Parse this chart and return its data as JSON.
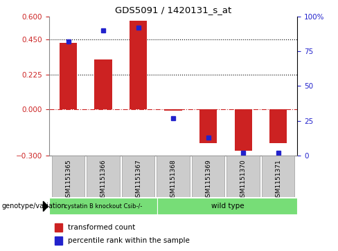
{
  "title": "GDS5091 / 1420131_s_at",
  "samples": [
    "GSM1151365",
    "GSM1151366",
    "GSM1151367",
    "GSM1151368",
    "GSM1151369",
    "GSM1151370",
    "GSM1151371"
  ],
  "red_values": [
    0.43,
    0.32,
    0.57,
    -0.01,
    -0.22,
    -0.27,
    -0.22
  ],
  "blue_values_pct": [
    82,
    90,
    92,
    27,
    13,
    2,
    2
  ],
  "ylim_left": [
    -0.3,
    0.6
  ],
  "ylim_right": [
    0,
    100
  ],
  "yticks_left": [
    -0.3,
    0,
    0.225,
    0.45,
    0.6
  ],
  "yticks_right": [
    0,
    25,
    50,
    75,
    100
  ],
  "hlines": [
    0.45,
    0.225
  ],
  "genotype_labels": [
    "cystatin B knockout Csib-/-",
    "wild type"
  ],
  "bar_color_red": "#cc2222",
  "bar_color_blue": "#2222cc",
  "bar_width": 0.5,
  "genotype_color": "#77dd77",
  "tick_bg_color": "#cccccc",
  "legend_items": [
    "transformed count",
    "percentile rank within the sample"
  ],
  "zero_line_color": "#cc2222",
  "dotted_line_color": "#000000"
}
